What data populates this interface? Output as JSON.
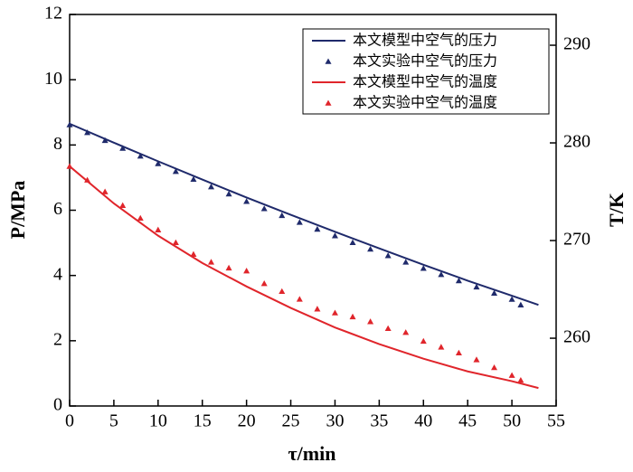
{
  "chart_data": {
    "type": "line",
    "xlabel": "τ/min",
    "ylabel": "P/MPa",
    "y2label": "T/K",
    "xlim": [
      0,
      55
    ],
    "xticks": [
      0,
      5,
      10,
      15,
      20,
      25,
      30,
      35,
      40,
      45,
      50,
      55
    ],
    "ylim": [
      0,
      12
    ],
    "yticks": [
      0,
      2,
      4,
      6,
      8,
      10,
      12
    ],
    "y2lim": [
      253.06,
      293.15
    ],
    "y2ticks": [
      260,
      270,
      280,
      290
    ],
    "legend": "upper right",
    "series": [
      {
        "name": "本文模型中空气的压力",
        "color": "#1f2a6b",
        "mode": "line",
        "axis": "y",
        "x": [
          0,
          5,
          10,
          15,
          20,
          25,
          30,
          35,
          40,
          45,
          50,
          53
        ],
        "values": [
          8.65,
          8.07,
          7.5,
          6.94,
          6.39,
          5.86,
          5.34,
          4.83,
          4.33,
          3.84,
          3.38,
          3.1
        ]
      },
      {
        "name": "本文实验中空气的压力",
        "color": "#1f2a6b",
        "mode": "marker",
        "axis": "y",
        "x": [
          0,
          2,
          4,
          6,
          8,
          10,
          12,
          14,
          16,
          18,
          20,
          22,
          24,
          26,
          28,
          30,
          32,
          34,
          36,
          38,
          40,
          42,
          44,
          46,
          48,
          50,
          51
        ],
        "values": [
          8.62,
          8.38,
          8.14,
          7.9,
          7.66,
          7.43,
          7.19,
          6.95,
          6.72,
          6.5,
          6.27,
          6.05,
          5.84,
          5.63,
          5.42,
          5.22,
          5.01,
          4.81,
          4.61,
          4.41,
          4.22,
          4.03,
          3.84,
          3.65,
          3.46,
          3.27,
          3.1
        ]
      },
      {
        "name": "本文模型中空气的温度",
        "color": "#e0252b",
        "mode": "line",
        "axis": "y2",
        "x": [
          0,
          5,
          10,
          15,
          20,
          25,
          30,
          35,
          40,
          45,
          50,
          53
        ],
        "values": [
          277.6,
          273.8,
          270.5,
          267.7,
          265.3,
          263.1,
          261.1,
          259.4,
          257.9,
          256.6,
          255.6,
          254.9
        ]
      },
      {
        "name": "本文实验中空气的温度",
        "color": "#e0252b",
        "mode": "marker",
        "axis": "y2",
        "x": [
          0,
          2,
          4,
          6,
          8,
          10,
          12,
          14,
          16,
          18,
          20,
          22,
          24,
          26,
          28,
          30,
          32,
          34,
          36,
          38,
          40,
          42,
          44,
          46,
          48,
          50,
          51
        ],
        "values": [
          277.6,
          276.2,
          275.0,
          273.6,
          272.3,
          271.1,
          269.8,
          268.6,
          267.8,
          267.2,
          266.9,
          265.6,
          264.8,
          264.0,
          263.0,
          262.6,
          262.2,
          261.7,
          261.0,
          260.6,
          259.7,
          259.1,
          258.5,
          257.8,
          257.0,
          256.2,
          255.7
        ]
      }
    ]
  }
}
